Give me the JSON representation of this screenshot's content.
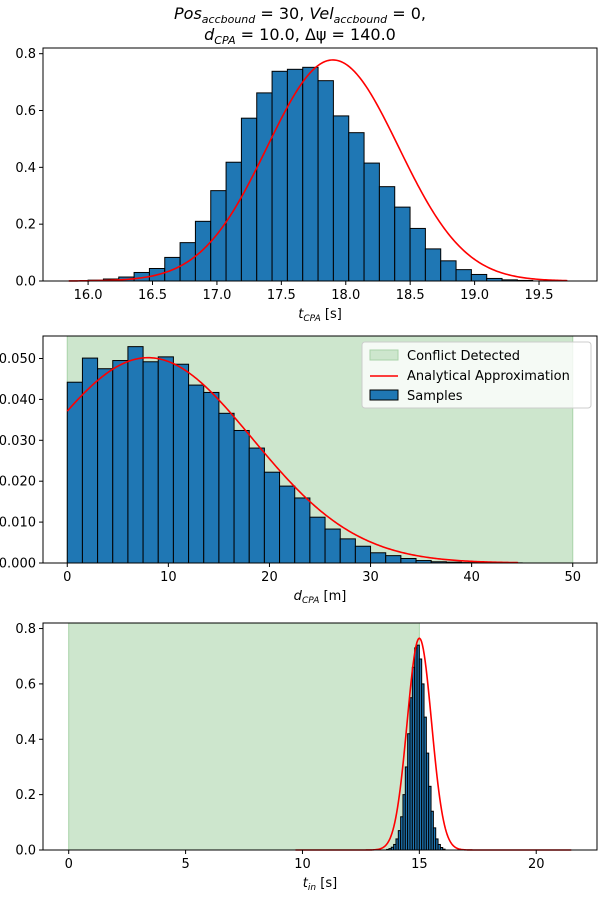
{
  "title": {
    "line1": {
      "a": "Pos",
      "a_sub": "accbound",
      "b": " = 30, ",
      "c": "Vel",
      "c_sub": "accbound",
      "d": " = 0,"
    },
    "line2": {
      "a": "d",
      "a_sub": "CPA",
      "b": " = 10.0, Δψ = 140.0"
    }
  },
  "colors": {
    "bar_fill": "#1f77b4",
    "bar_edge": "#000000",
    "curve": "#ff0000",
    "shade": "#cde6cd",
    "shade_edge": "#a9d3a9"
  },
  "chart_data": [
    {
      "type": "bar",
      "name": "t_cpa",
      "xlabel": {
        "base": "t",
        "sub": "CPA",
        "unit": " [s]"
      },
      "xlim": [
        15.65,
        19.95
      ],
      "ylim": [
        0,
        0.82
      ],
      "xticks": [
        16.0,
        16.5,
        17.0,
        17.5,
        18.0,
        18.5,
        19.0,
        19.5
      ],
      "xtick_labels": [
        "16.0",
        "16.5",
        "17.0",
        "17.5",
        "18.0",
        "18.5",
        "19.0",
        "19.5"
      ],
      "yticks": [
        0.0,
        0.2,
        0.4,
        0.6,
        0.8
      ],
      "ytick_labels": [
        "0.0",
        "0.2",
        "0.4",
        "0.6",
        "0.8"
      ],
      "bins_start": 16.0,
      "bin_width": 0.119,
      "values": [
        0.003,
        0.007,
        0.014,
        0.03,
        0.044,
        0.083,
        0.135,
        0.21,
        0.318,
        0.418,
        0.573,
        0.662,
        0.738,
        0.745,
        0.752,
        0.705,
        0.581,
        0.522,
        0.415,
        0.332,
        0.26,
        0.185,
        0.113,
        0.071,
        0.04,
        0.023,
        0.009,
        0.004,
        0.002
      ],
      "curve": {
        "kind": "gaussian",
        "mean": 17.9,
        "std": 0.51,
        "peak": 0.778,
        "x_range": [
          15.85,
          19.72
        ]
      },
      "shade": null,
      "legend": null
    },
    {
      "type": "bar",
      "name": "d_cpa",
      "xlabel": {
        "base": "d",
        "sub": "CPA",
        "unit": " [m]"
      },
      "xlim": [
        -2.4,
        52.4
      ],
      "ylim": [
        0,
        0.0555
      ],
      "xticks": [
        0,
        10,
        20,
        30,
        40,
        50
      ],
      "xtick_labels": [
        "0",
        "10",
        "20",
        "30",
        "40",
        "50"
      ],
      "yticks": [
        0.0,
        0.01,
        0.02,
        0.03,
        0.04,
        0.05
      ],
      "ytick_labels": [
        "0.000",
        "0.010",
        "0.020",
        "0.030",
        "0.040",
        "0.050"
      ],
      "bins_start": 0,
      "bin_width": 1.5,
      "values": [
        0.0442,
        0.0501,
        0.0475,
        0.0495,
        0.0529,
        0.0492,
        0.0504,
        0.0486,
        0.0435,
        0.0417,
        0.0366,
        0.0324,
        0.0281,
        0.0222,
        0.0188,
        0.0159,
        0.0112,
        0.0083,
        0.0059,
        0.0041,
        0.0025,
        0.0018,
        0.0011,
        0.0006,
        0.0003,
        0.0002,
        0.0001,
        0.0001,
        5e-05,
        3e-05
      ],
      "curve": {
        "kind": "gaussian",
        "mean": 8.0,
        "std": 10.3,
        "peak": 0.0502,
        "x_range": [
          0,
          44.6
        ]
      },
      "shade": {
        "x0": 0,
        "x1": 50
      },
      "legend": {
        "placement": "upper-right",
        "entries": [
          "Conflict Detected",
          "Analytical Approximation",
          "Samples"
        ]
      }
    },
    {
      "type": "bar",
      "name": "t_in",
      "xlabel": {
        "base": "t",
        "sub": "in",
        "unit": " [s]"
      },
      "xlim": [
        -1.1,
        22.6
      ],
      "ylim": [
        0,
        0.82
      ],
      "xticks": [
        0,
        5,
        10,
        15,
        20
      ],
      "xtick_labels": [
        "0",
        "5",
        "10",
        "15",
        "20"
      ],
      "yticks": [
        0.0,
        0.2,
        0.4,
        0.6,
        0.8
      ],
      "ytick_labels": [
        "0.0",
        "0.2",
        "0.4",
        "0.6",
        "0.8"
      ],
      "bins_start": 13.6,
      "bin_width": 0.1,
      "values": [
        0.002,
        0.005,
        0.01,
        0.02,
        0.04,
        0.07,
        0.12,
        0.2,
        0.3,
        0.42,
        0.55,
        0.66,
        0.73,
        0.74,
        0.69,
        0.6,
        0.48,
        0.35,
        0.23,
        0.14,
        0.08,
        0.04,
        0.02,
        0.009,
        0.003
      ],
      "curve": {
        "kind": "gaussian",
        "mean": 15.0,
        "std": 0.52,
        "peak": 0.765,
        "x_range": [
          9.7,
          21.5
        ]
      },
      "shade": {
        "x0": 0,
        "x1": 15.0
      },
      "legend": null
    }
  ]
}
